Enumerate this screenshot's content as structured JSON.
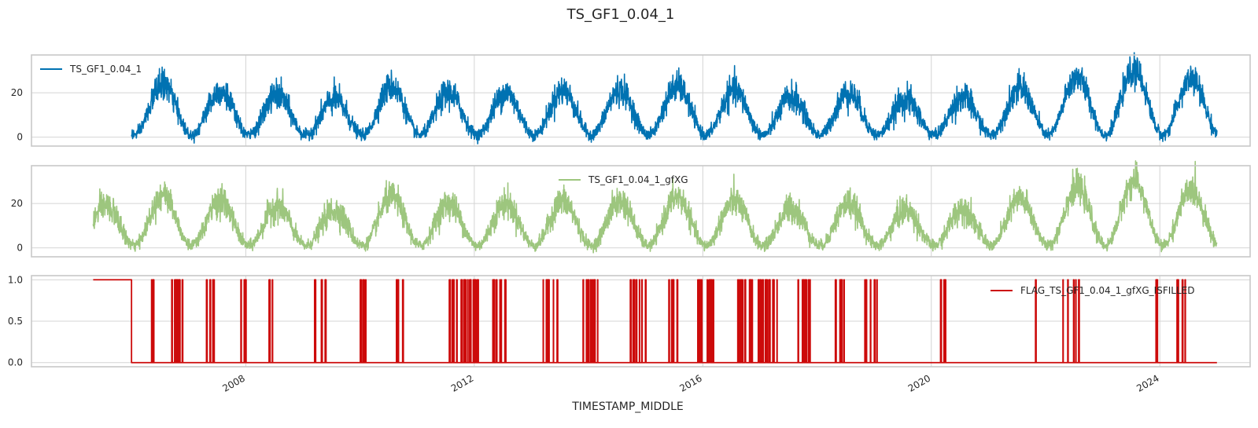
{
  "figure_title": "TS_GF1_0.04_1",
  "chart_data": [
    {
      "type": "line",
      "series": [
        {
          "name": "TS_GF1_0.04_1",
          "color": "#0072B2",
          "coverage": "2006-01-01 to 2025-01-01",
          "seasonal_amplitude": "about 10 (peaks 20–35, troughs -2–8)"
        }
      ],
      "xlim": [
        "2004-04-01",
        "2025-08-01"
      ],
      "ylim": [
        -4,
        37
      ],
      "yticks": [
        "0",
        "20"
      ],
      "legend_position": "upper-left",
      "grid": true
    },
    {
      "type": "line",
      "series": [
        {
          "name": "TS_GF1_0.04_1_gfXG",
          "color": "#9DC67E",
          "coverage": "2005-05-01 to 2025-01-01"
        }
      ],
      "xlim": [
        "2004-04-01",
        "2025-08-01"
      ],
      "ylim": [
        -4,
        37
      ],
      "yticks": [
        "0",
        "20"
      ],
      "legend_position": "upper-center",
      "grid": true
    },
    {
      "type": "line",
      "series": [
        {
          "name": "FLAG_TS_GF1_0.04_1_gfXG_ISFILLED",
          "color": "#CC0A0A",
          "values_description": "1.0 from 2005-05 to 2006-01, then 0 with intermittent spikes to 1.0",
          "range": [
            0,
            1
          ]
        }
      ],
      "xlim": [
        "2004-04-01",
        "2025-08-01"
      ],
      "ylim": [
        -0.05,
        1.05
      ],
      "yticks": [
        "0.0",
        "0.5",
        "1.0"
      ],
      "legend_position": "upper-right",
      "grid": true
    }
  ],
  "x_ticks": [
    "2008",
    "2012",
    "2016",
    "2020",
    "2024"
  ],
  "xlabel": "TIMESTAMP_MIDDLE"
}
